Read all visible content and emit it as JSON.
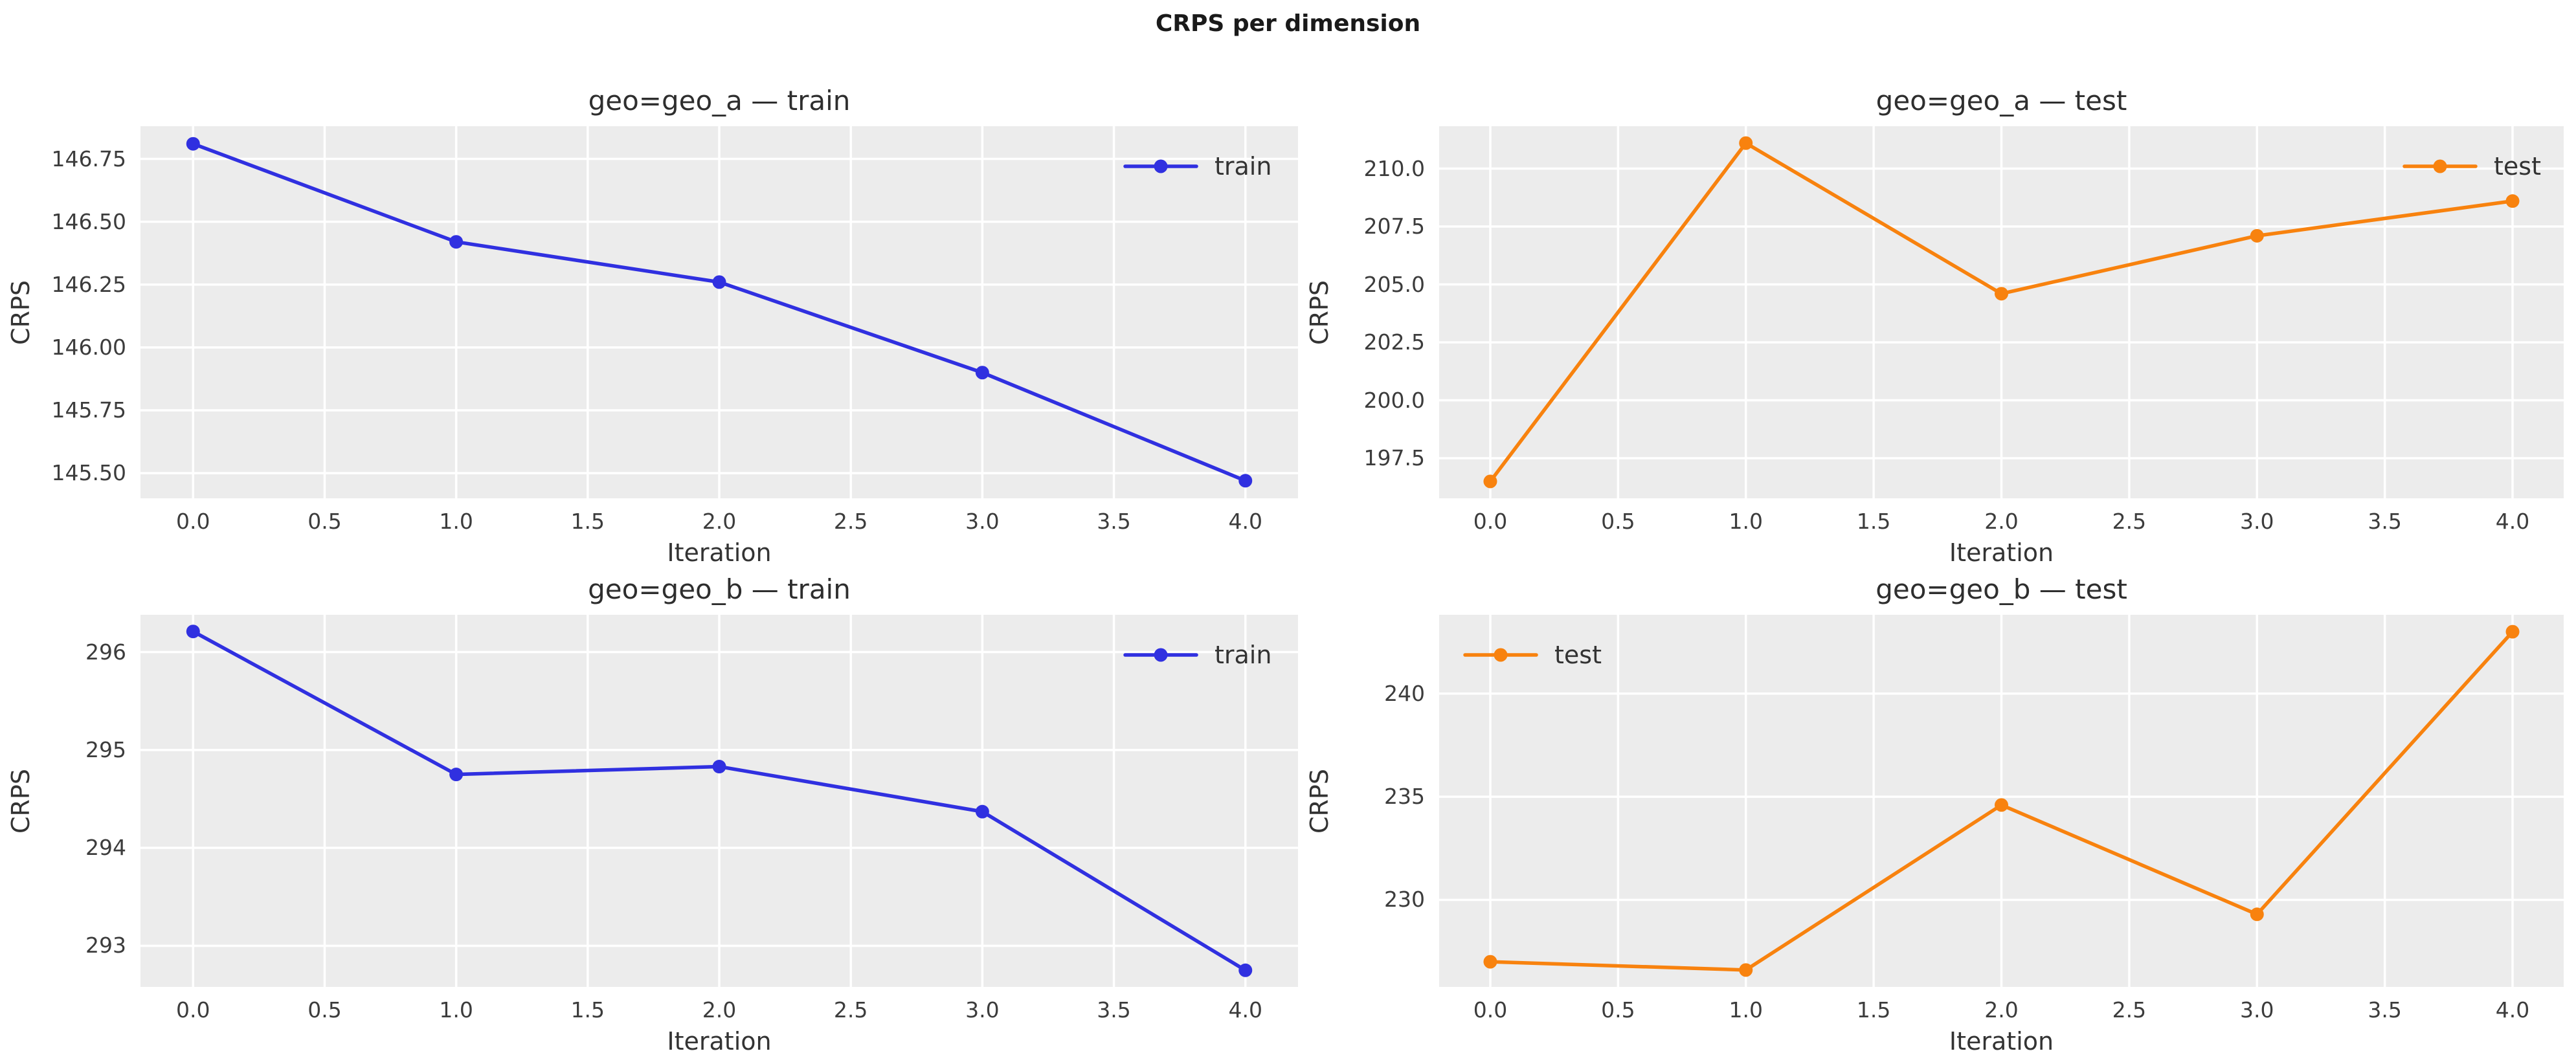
{
  "figure": {
    "title": "CRPS per dimension",
    "background": "#ffffff",
    "axes_background": "#ececec",
    "grid_color": "#ffffff",
    "text_color": "#333333"
  },
  "colors": {
    "train": "#3030e0",
    "test": "#f8820e"
  },
  "chart_data": [
    {
      "type": "line",
      "title": "geo=geo_a — train",
      "xlabel": "Iteration",
      "ylabel": "CRPS",
      "grid": true,
      "legend": {
        "label": "train",
        "loc": "top-right",
        "color_key": "train"
      },
      "series": [
        {
          "name": "train",
          "color_key": "train",
          "x": [
            0,
            1,
            2,
            3,
            4
          ],
          "y": [
            146.81,
            146.42,
            146.26,
            145.9,
            145.47
          ]
        }
      ],
      "xlim": [
        -0.2,
        4.2
      ],
      "ylim": [
        145.4,
        146.88
      ],
      "xticks": {
        "values": [
          0,
          0.5,
          1,
          1.5,
          2,
          2.5,
          3,
          3.5,
          4
        ],
        "labels": [
          "0.0",
          "0.5",
          "1.0",
          "1.5",
          "2.0",
          "2.5",
          "3.0",
          "3.5",
          "4.0"
        ]
      },
      "yticks": {
        "values": [
          145.5,
          145.75,
          146.0,
          146.25,
          146.5,
          146.75
        ],
        "labels": [
          "145.50",
          "145.75",
          "146.00",
          "146.25",
          "146.50",
          "146.75"
        ]
      }
    },
    {
      "type": "line",
      "title": "geo=geo_a — test",
      "xlabel": "Iteration",
      "ylabel": "CRPS",
      "grid": true,
      "legend": {
        "label": "test",
        "loc": "top-right",
        "color_key": "test"
      },
      "series": [
        {
          "name": "test",
          "color_key": "test",
          "x": [
            0,
            1,
            2,
            3,
            4
          ],
          "y": [
            196.5,
            211.1,
            204.6,
            207.1,
            208.6
          ]
        }
      ],
      "xlim": [
        -0.2,
        4.2
      ],
      "ylim": [
        195.77,
        211.83
      ],
      "xticks": {
        "values": [
          0,
          0.5,
          1,
          1.5,
          2,
          2.5,
          3,
          3.5,
          4
        ],
        "labels": [
          "0.0",
          "0.5",
          "1.0",
          "1.5",
          "2.0",
          "2.5",
          "3.0",
          "3.5",
          "4.0"
        ]
      },
      "yticks": {
        "values": [
          197.5,
          200.0,
          202.5,
          205.0,
          207.5,
          210.0
        ],
        "labels": [
          "197.5",
          "200.0",
          "202.5",
          "205.0",
          "207.5",
          "210.0"
        ]
      }
    },
    {
      "type": "line",
      "title": "geo=geo_b — train",
      "xlabel": "Iteration",
      "ylabel": "CRPS",
      "grid": true,
      "legend": {
        "label": "train",
        "loc": "top-right",
        "color_key": "train"
      },
      "series": [
        {
          "name": "train",
          "color_key": "train",
          "x": [
            0,
            1,
            2,
            3,
            4
          ],
          "y": [
            296.21,
            294.75,
            294.83,
            294.37,
            292.75
          ]
        }
      ],
      "xlim": [
        -0.2,
        4.2
      ],
      "ylim": [
        292.58,
        296.38
      ],
      "xticks": {
        "values": [
          0,
          0.5,
          1,
          1.5,
          2,
          2.5,
          3,
          3.5,
          4
        ],
        "labels": [
          "0.0",
          "0.5",
          "1.0",
          "1.5",
          "2.0",
          "2.5",
          "3.0",
          "3.5",
          "4.0"
        ]
      },
      "yticks": {
        "values": [
          293,
          294,
          295,
          296
        ],
        "labels": [
          "293",
          "294",
          "295",
          "296"
        ]
      }
    },
    {
      "type": "line",
      "title": "geo=geo_b — test",
      "xlabel": "Iteration",
      "ylabel": "CRPS",
      "grid": true,
      "legend": {
        "label": "test",
        "loc": "top-left",
        "color_key": "test"
      },
      "series": [
        {
          "name": "test",
          "color_key": "test",
          "x": [
            0,
            1,
            2,
            3,
            4
          ],
          "y": [
            227.0,
            226.6,
            234.6,
            229.3,
            243.0
          ]
        }
      ],
      "xlim": [
        -0.2,
        4.2
      ],
      "ylim": [
        225.78,
        243.82
      ],
      "xticks": {
        "values": [
          0,
          0.5,
          1,
          1.5,
          2,
          2.5,
          3,
          3.5,
          4
        ],
        "labels": [
          "0.0",
          "0.5",
          "1.0",
          "1.5",
          "2.0",
          "2.5",
          "3.0",
          "3.5",
          "4.0"
        ]
      },
      "yticks": {
        "values": [
          230,
          235,
          240
        ],
        "labels": [
          "230",
          "235",
          "240"
        ]
      }
    }
  ]
}
